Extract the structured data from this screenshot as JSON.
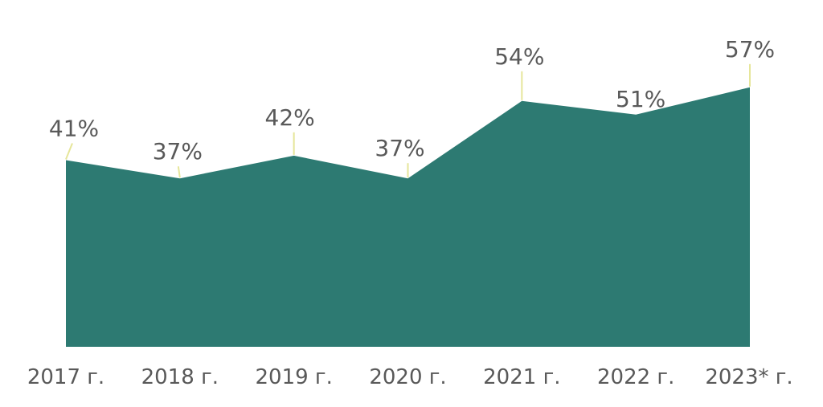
{
  "chart_data": {
    "type": "area",
    "categories": [
      "2017 г.",
      "2018 г.",
      "2019 г.",
      "2020 г.",
      "2021 г.",
      "2022 г.",
      "2023* г."
    ],
    "values": [
      41,
      37,
      42,
      37,
      54,
      51,
      57
    ],
    "value_labels": [
      "41%",
      "37%",
      "42%",
      "37%",
      "54%",
      "51%",
      "57%"
    ],
    "ylim": [
      0,
      62
    ],
    "grid": false,
    "legend": "none",
    "colors": {
      "area": "#2d7a72",
      "leader": "#e6e69a",
      "text": "#595959"
    }
  }
}
